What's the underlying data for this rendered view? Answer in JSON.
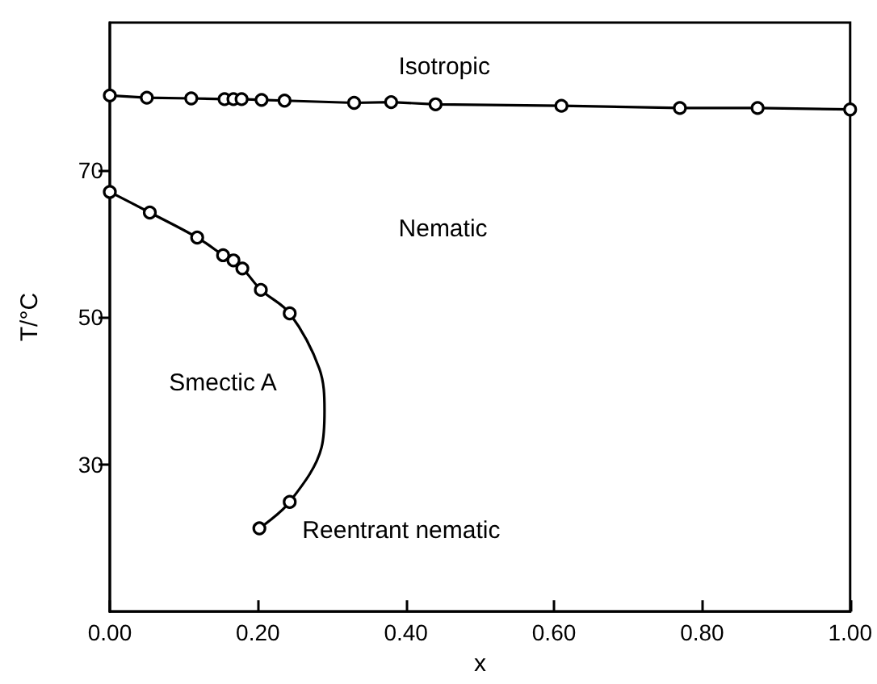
{
  "chart_data": {
    "type": "line",
    "xlabel": "x",
    "ylabel": "T/°C",
    "xlim": [
      0,
      1
    ],
    "ylim": [
      10,
      90
    ],
    "xticks": [
      {
        "value": 0,
        "label": "0.00"
      },
      {
        "value": 0.2,
        "label": "0.20"
      },
      {
        "value": 0.4,
        "label": "0.40"
      },
      {
        "value": 0.6,
        "label": "0.60"
      },
      {
        "value": 0.8,
        "label": "0.80"
      },
      {
        "value": 1,
        "label": "1.00"
      }
    ],
    "yticks": [
      30,
      50,
      70
    ],
    "grid": false,
    "marker": "circle",
    "series": [
      {
        "color": "#000000",
        "x": [
          0,
          0.05,
          0.11,
          0.155,
          0.167,
          0.178,
          0.205,
          0.236,
          0.33,
          0.38,
          0.44,
          0.61,
          0.77,
          0.875,
          1.0
        ],
        "values": [
          80.1,
          79.8,
          79.7,
          79.6,
          79.6,
          79.6,
          79.5,
          79.4,
          79.1,
          79.2,
          78.9,
          78.7,
          78.4,
          78.4,
          78.2
        ]
      },
      {
        "type": "scatter",
        "color": "#000000",
        "x": [
          0,
          0.054,
          0.118,
          0.153,
          0.167,
          0.179,
          0.204,
          0.243,
          0.243,
          0.202
        ],
        "values": [
          67.0,
          64.2,
          60.8,
          58.4,
          57.7,
          56.6,
          53.7,
          50.5,
          24.9,
          21.3
        ]
      },
      {
        "type": "line",
        "marker": "none",
        "color": "#000000",
        "x": [
          0,
          0.054,
          0.118,
          0.153,
          0.179,
          0.204,
          0.243,
          0.283,
          0.29,
          0.286,
          0.243,
          0.202
        ],
        "values": [
          67.0,
          64.2,
          60.8,
          58.4,
          56.6,
          53.7,
          50.5,
          43,
          37.3,
          32.3,
          24.9,
          21.3
        ]
      }
    ],
    "annotations": [
      "Isotropic",
      "Nematic",
      "Smectic A",
      "Reentrant nematic"
    ]
  }
}
